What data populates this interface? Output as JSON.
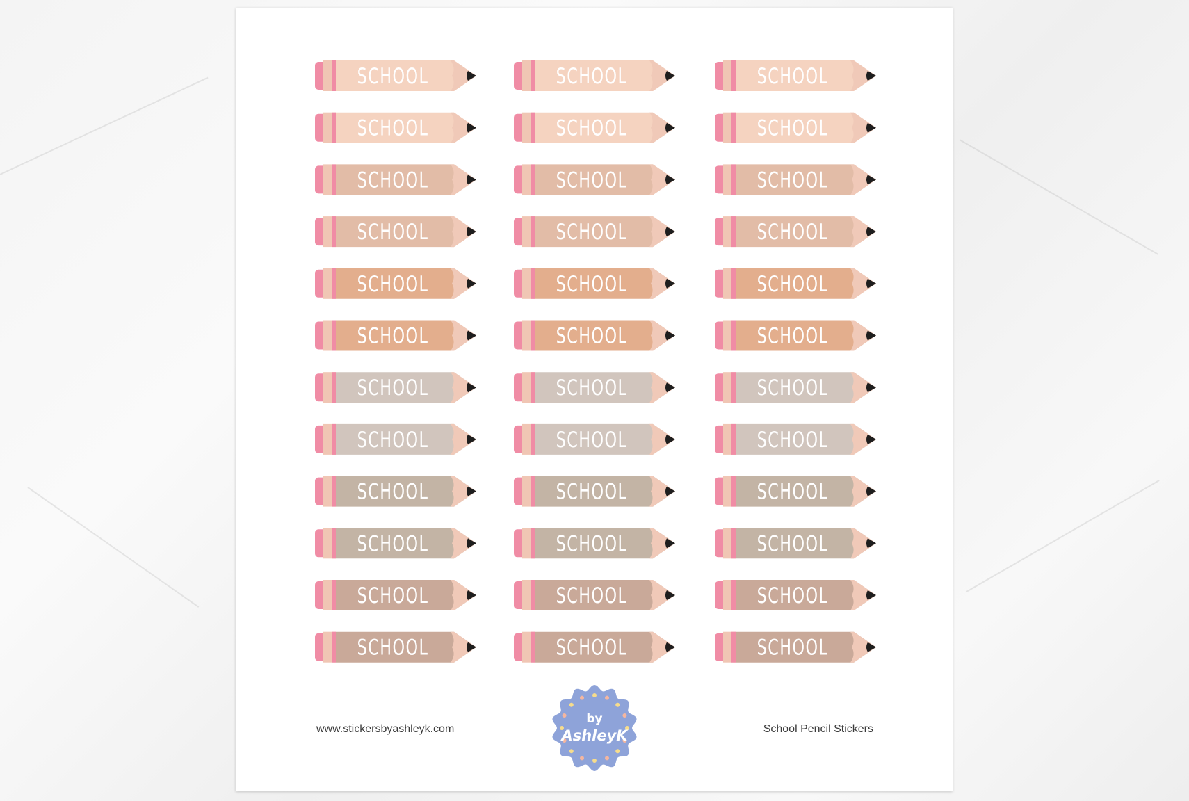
{
  "sticker": {
    "label": "SCHOOL"
  },
  "grid": {
    "columns": 3,
    "rows": 12
  },
  "colors": {
    "eraser": "#f08ca5",
    "ferrule": "#f0c6b4",
    "tip": "#f0c9b8",
    "lead": "#1e1e1e",
    "text": "#ffffff",
    "row_bodies": [
      "#f5d3c0",
      "#f5d3c0",
      "#e2bca7",
      "#e2bca7",
      "#e3ae8d",
      "#e3ae8d",
      "#d1c5bd",
      "#d1c5bd",
      "#c3b4a5",
      "#c3b4a5",
      "#c9a999",
      "#c9a999"
    ]
  },
  "footer": {
    "website": "www.stickersbyashleyk.com",
    "product_title": "School Pencil Stickers",
    "logo_text": [
      "by",
      "AshleyK"
    ],
    "logo_color": "#8ea3d9"
  }
}
